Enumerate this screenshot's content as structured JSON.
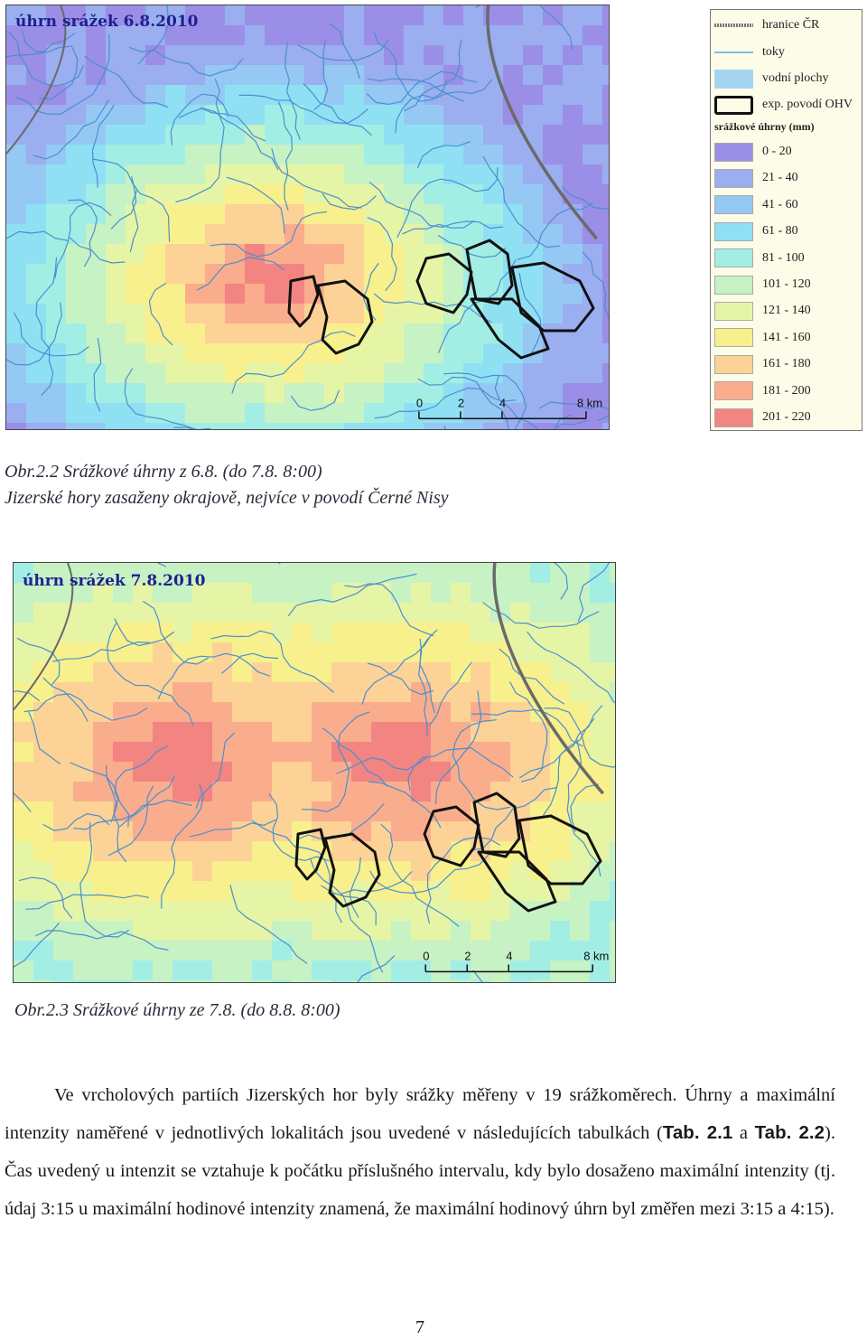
{
  "maps": [
    {
      "title": "úhrn srážek 6.8.2010",
      "scale_labels": [
        "0",
        "2",
        "4",
        "8 km"
      ]
    },
    {
      "title": "úhrn srážek 7.8.2010",
      "scale_labels": [
        "0",
        "2",
        "4",
        "8 km"
      ]
    }
  ],
  "legend": {
    "items": [
      {
        "label": "hranice ČR",
        "icon": "border-line"
      },
      {
        "label": "toky",
        "icon": "river-line"
      },
      {
        "label": "vodní plochy",
        "icon": "water-fill",
        "color": "#a4d4f0"
      },
      {
        "label": "exp. povodí OHV",
        "icon": "basin-outline"
      }
    ],
    "header": "srážkové úhrny (mm)",
    "classes": [
      {
        "label": "0 - 20",
        "color": "#9b8ee6"
      },
      {
        "label": "21 - 40",
        "color": "#9aaef0"
      },
      {
        "label": "41 - 60",
        "color": "#96c8f4"
      },
      {
        "label": "61 - 80",
        "color": "#90e0f4"
      },
      {
        "label": "81 - 100",
        "color": "#a2eee4"
      },
      {
        "label": "101 - 120",
        "color": "#c6f2c4"
      },
      {
        "label": "121 - 140",
        "color": "#e6f4a6"
      },
      {
        "label": "141 - 160",
        "color": "#f8f08c"
      },
      {
        "label": "161 - 180",
        "color": "#fcd296"
      },
      {
        "label": "181 - 200",
        "color": "#faad8c"
      },
      {
        "label": "201 - 220",
        "color": "#f28482"
      }
    ]
  },
  "caption1": {
    "line1": "Obr.2.2 Srážkové úhrny z 6.8. (do 7.8. 8:00)",
    "line2": "Jizerské hory zasaženy okrajově, nejvíce v povodí Černé Nisy"
  },
  "caption2": "Obr.2.3 Srážkové úhrny ze 7.8. (do 8.8. 8:00)",
  "paragraph": {
    "part1": "Ve vrcholových partiích Jizerských hor byly srážky měřeny v 19 srážkoměrech. Úhrny a maximální intenzity naměřené v jednotlivých lokalitách jsou uvedené v následujících tabulkách (",
    "tab1": "Tab. 2.1",
    "and": " a ",
    "tab2": "Tab. 2.2",
    "part2": "). Čas uvedený u intenzit se vztahuje k počátku příslušného intervalu, kdy bylo dosaženo maximální intenzity (tj. údaj 3:15 u maximální hodinové intenzity znamená, že maximální hodinový úhrn byl změřen mezi 3:15 a 4:15)."
  },
  "page_number": "7"
}
